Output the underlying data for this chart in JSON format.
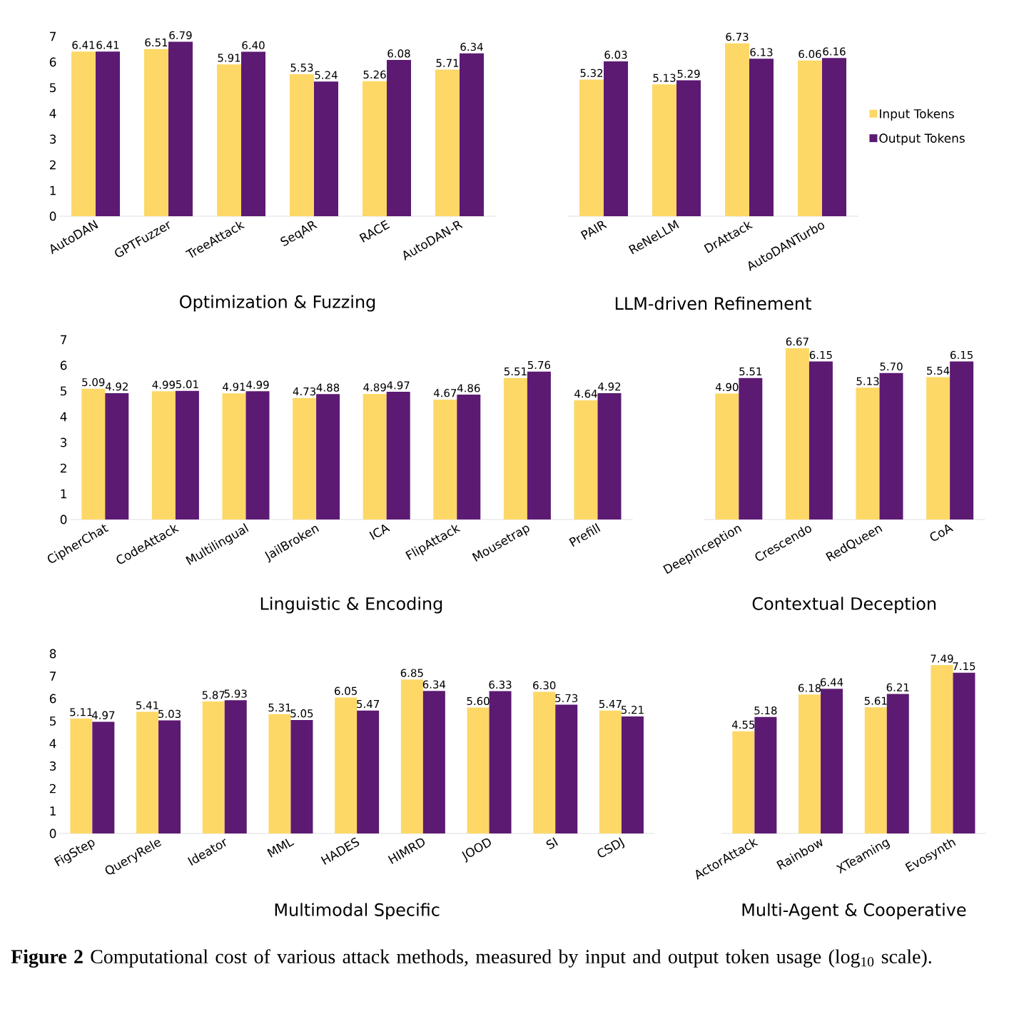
{
  "chart_data": [
    {
      "type": "bar",
      "xlabel": "Optimization & Fuzzing",
      "categories": [
        "AutoDAN",
        "GPTFuzzer",
        "TreeAttack",
        "SeqAR",
        "RACE",
        "AutoDAN-R"
      ],
      "ylim": [
        0,
        7
      ],
      "yticks": [
        0,
        1,
        2,
        3,
        4,
        5,
        6,
        7
      ],
      "series": [
        {
          "color": "#fdd866",
          "values": [
            6.41,
            6.51,
            5.91,
            5.53,
            5.26,
            5.71
          ],
          "value_labels": [
            "6.41",
            "6.51",
            "5.91",
            "5.53",
            "5.26",
            "5.71"
          ]
        },
        {
          "color": "#5c1a73",
          "values": [
            6.41,
            6.79,
            6.4,
            5.24,
            6.08,
            6.34
          ],
          "value_labels": [
            "6.41",
            "6.79",
            "6.40",
            "5.24",
            "6.08",
            "6.34"
          ]
        }
      ]
    },
    {
      "type": "bar",
      "xlabel": "LLM-driven Refinement",
      "categories": [
        "PAIR",
        "ReNeLLM",
        "DrAttack",
        "AutoDANTurbo"
      ],
      "ylim": [
        0,
        7
      ],
      "tick_labels": "x",
      "legend": "right",
      "series": [
        {
          "name": "Input Tokens",
          "color": "#fdd866",
          "values": [
            5.32,
            5.13,
            6.73,
            6.06
          ],
          "value_labels": [
            "5.32",
            "5.13",
            "6.73",
            "6.06"
          ]
        },
        {
          "name": "Output Tokens",
          "color": "#5c1a73",
          "values": [
            6.03,
            5.29,
            6.13,
            6.16
          ],
          "value_labels": [
            "6.03",
            "5.29",
            "6.13",
            "6.16"
          ]
        }
      ]
    },
    {
      "type": "bar",
      "xlabel": "Linguistic & Encoding",
      "categories": [
        "CipherChat",
        "CodeAttack",
        "Multilingual",
        "JailBroken",
        "ICA",
        "FlipAttack",
        "Mousetrap",
        "Prefill"
      ],
      "ylim": [
        0,
        7
      ],
      "yticks": [
        0,
        1,
        2,
        3,
        4,
        5,
        6,
        7
      ],
      "series": [
        {
          "color": "#fdd866",
          "values": [
            5.09,
            4.99,
            4.91,
            4.73,
            4.89,
            4.67,
            5.51,
            4.64
          ],
          "value_labels": [
            "5.09",
            "4.99",
            "4.91",
            "4.73",
            "4.89",
            "4.67",
            "5.51",
            "4.64"
          ]
        },
        {
          "color": "#5c1a73",
          "values": [
            4.92,
            5.01,
            4.99,
            4.88,
            4.97,
            4.86,
            5.76,
            4.92
          ],
          "value_labels": [
            "4.92",
            "5.01",
            "4.99",
            "4.88",
            "4.97",
            "4.86",
            "5.76",
            "4.92"
          ]
        }
      ]
    },
    {
      "type": "bar",
      "xlabel": "Contextual Deception",
      "categories": [
        "DeepInception",
        "Crescendo",
        "RedQueen",
        "CoA"
      ],
      "ylim": [
        0,
        7
      ],
      "tick_labels": "x",
      "series": [
        {
          "color": "#fdd866",
          "values": [
            4.9,
            6.67,
            5.13,
            5.54
          ],
          "value_labels": [
            "4.90",
            "6.67",
            "5.13",
            "5.54"
          ]
        },
        {
          "color": "#5c1a73",
          "values": [
            5.51,
            6.15,
            5.7,
            6.15
          ],
          "value_labels": [
            "5.51",
            "6.15",
            "5.70",
            "6.15"
          ]
        }
      ]
    },
    {
      "type": "bar",
      "xlabel": "Multimodal Specific",
      "categories": [
        "FigStep",
        "QueryRele",
        "Ideator",
        "MML",
        "HADES",
        "HIMRD",
        "JOOD",
        "SI",
        "CSDJ"
      ],
      "ylim": [
        0,
        8
      ],
      "yticks": [
        0,
        1,
        2,
        3,
        4,
        5,
        6,
        7,
        8
      ],
      "series": [
        {
          "color": "#fdd866",
          "values": [
            5.11,
            5.41,
            5.87,
            5.31,
            6.05,
            6.85,
            5.6,
            6.3,
            5.47
          ],
          "value_labels": [
            "5.11",
            "5.41",
            "5.87",
            "5.31",
            "6.05",
            "6.85",
            "5.60",
            "6.30",
            "5.47"
          ]
        },
        {
          "color": "#5c1a73",
          "values": [
            4.97,
            5.03,
            5.93,
            5.05,
            5.47,
            6.34,
            6.33,
            5.73,
            5.21
          ],
          "value_labels": [
            "4.97",
            "5.03",
            "5.93",
            "5.05",
            "5.47",
            "6.34",
            "6.33",
            "5.73",
            "5.21"
          ]
        }
      ]
    },
    {
      "type": "bar",
      "xlabel": "Multi-Agent & Cooperative",
      "categories": [
        "ActorAttack",
        "Rainbow",
        "XTeaming",
        "Evosynth"
      ],
      "ylim": [
        0,
        8
      ],
      "tick_labels": "x",
      "annotations": [
        "**Figure 2** Computational cost of various attack methods, measured by input and output token usage (log$_{10}$ scale)."
      ],
      "series": [
        {
          "color": "#fdd866",
          "values": [
            4.55,
            6.18,
            5.61,
            7.49
          ],
          "value_labels": [
            "4.55",
            "6.18",
            "5.61",
            "7.49"
          ]
        },
        {
          "color": "#5c1a73",
          "values": [
            5.18,
            6.44,
            6.21,
            7.15
          ],
          "value_labels": [
            "5.18",
            "6.44",
            "6.21",
            "7.15"
          ]
        }
      ]
    }
  ]
}
